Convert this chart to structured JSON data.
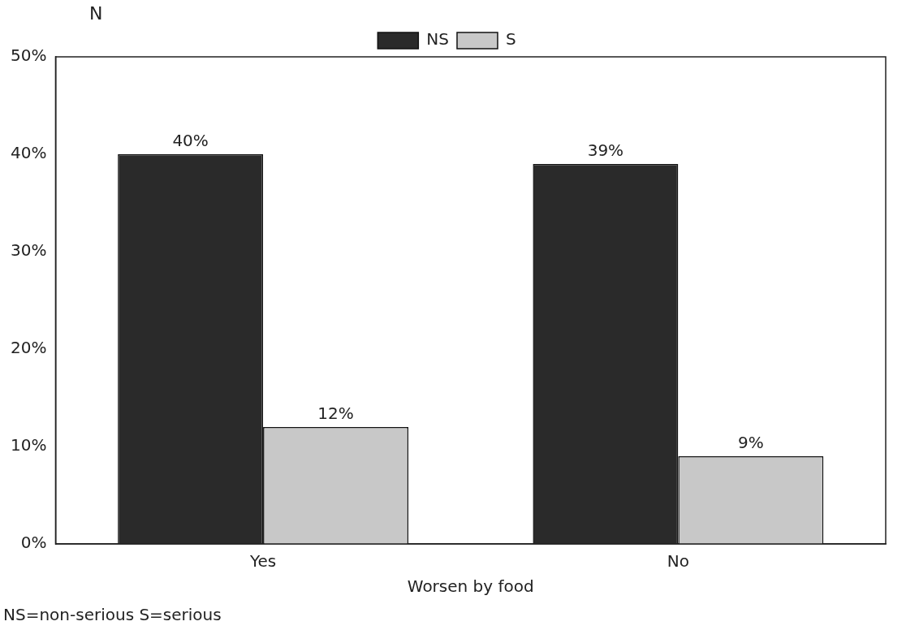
{
  "chart_data": {
    "type": "bar",
    "xlabel": "Worsen by food",
    "ylabel": "N",
    "categories": [
      "Yes",
      "No"
    ],
    "series": [
      {
        "name": "NS",
        "color": "#2a2a2a",
        "values": [
          40,
          39
        ],
        "value_labels": [
          "40%",
          "39%"
        ]
      },
      {
        "name": "S",
        "color": "#c8c8c8",
        "values": [
          12,
          9
        ],
        "value_labels": [
          "12%",
          "9%"
        ]
      }
    ],
    "ylim": [
      0,
      50
    ],
    "yticks": [
      {
        "value": 0,
        "label": "0%"
      },
      {
        "value": 10,
        "label": "10%"
      },
      {
        "value": 20,
        "label": "20%"
      },
      {
        "value": 30,
        "label": "30%"
      },
      {
        "value": 40,
        "label": "40%"
      },
      {
        "value": 50,
        "label": "50%"
      }
    ],
    "grid": false,
    "legend": "top",
    "annotations": [
      "NS=non-serious   S=serious"
    ]
  }
}
